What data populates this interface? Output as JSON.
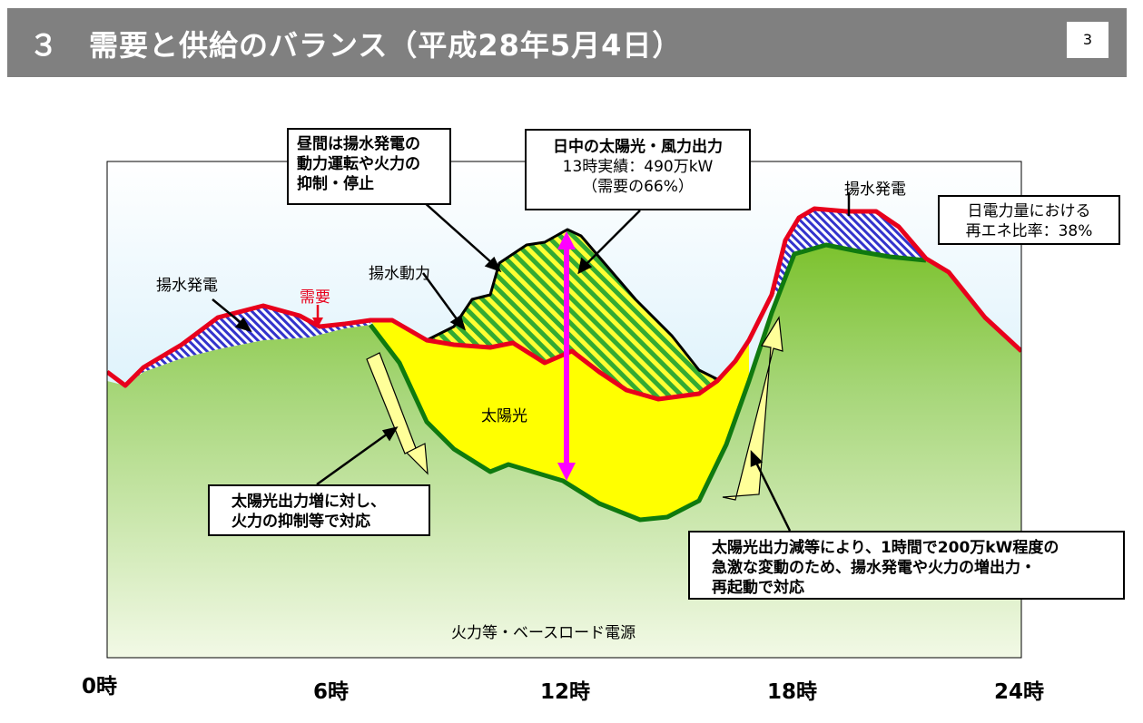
{
  "header": {
    "title": "３　需要と供給のバランス（平成28年5月4日）",
    "page_number": "3"
  },
  "labels": {
    "pumped_left": "揚水発電",
    "demand": "需要",
    "pumping_power": "揚水動力",
    "pumped_right": "揚水発電",
    "solar": "太陽光",
    "base_load": "火力等・ベースロード電源"
  },
  "callouts": {
    "daytime": [
      "昼間は揚水発電の",
      "動力運転や火力の",
      "抑制・停止"
    ],
    "solar_wind": [
      "日中の太陽光・風力出力",
      "13時実績：490万kW",
      "（需要の66%）"
    ],
    "renewable_ratio": [
      "日電力量における",
      "再エネ比率：38%"
    ],
    "solar_increase": [
      "太陽光出力増に対し、",
      "火力の抑制等で対応"
    ],
    "solar_decrease": [
      "太陽光出力減等により、1時間で200万kW程度の",
      "急激な変動のため、揚水発電や火力の増出力・",
      "再起動で対応"
    ]
  },
  "axis": {
    "ticks": [
      "0時",
      "6時",
      "12時",
      "18時",
      "24時"
    ]
  },
  "colors": {
    "demand_line": "#e8001c",
    "supply_line": "#0f7a0f",
    "solar_fill": "#ffff00",
    "pumped_hatch": "#3333cc",
    "wind_hatch": "#33aa33",
    "arrow": "#ff00ff"
  }
}
